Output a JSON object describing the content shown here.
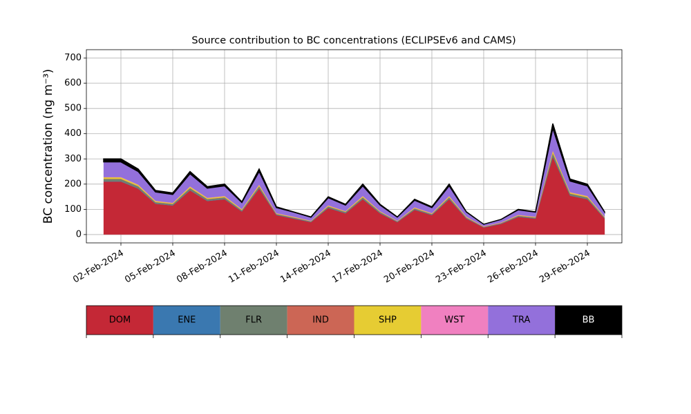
{
  "chart_data": {
    "type": "stacked_area",
    "title": "Source contribution to BC concentrations (ECLIPSEv6 and CAMS)",
    "y_label": "BC concentration (ng m⁻³)",
    "x": [
      "2024-02-01",
      "2024-02-02",
      "2024-02-03",
      "2024-02-04",
      "2024-02-05",
      "2024-02-06",
      "2024-02-07",
      "2024-02-08",
      "2024-02-09",
      "2024-02-10",
      "2024-02-11",
      "2024-02-12",
      "2024-02-13",
      "2024-02-14",
      "2024-02-15",
      "2024-02-16",
      "2024-02-17",
      "2024-02-18",
      "2024-02-19",
      "2024-02-20",
      "2024-02-21",
      "2024-02-22",
      "2024-02-23",
      "2024-02-24",
      "2024-02-25",
      "2024-02-26",
      "2024-02-27",
      "2024-02-28",
      "2024-02-29",
      "2024-03-01"
    ],
    "xlim": [
      "2024-01-31",
      "2024-03-02"
    ],
    "xticks": [
      {
        "value": "2024-02-02",
        "label": "02-Feb-2024"
      },
      {
        "value": "2024-02-05",
        "label": "05-Feb-2024"
      },
      {
        "value": "2024-02-08",
        "label": "08-Feb-2024"
      },
      {
        "value": "2024-02-11",
        "label": "11-Feb-2024"
      },
      {
        "value": "2024-02-14",
        "label": "14-Feb-2024"
      },
      {
        "value": "2024-02-17",
        "label": "17-Feb-2024"
      },
      {
        "value": "2024-02-20",
        "label": "20-Feb-2024"
      },
      {
        "value": "2024-02-23",
        "label": "23-Feb-2024"
      },
      {
        "value": "2024-02-26",
        "label": "26-Feb-2024"
      },
      {
        "value": "2024-02-29",
        "label": "29-Feb-2024"
      }
    ],
    "ylim": [
      -33,
      733
    ],
    "yticks": [
      0,
      100,
      200,
      300,
      400,
      500,
      600,
      700
    ],
    "grid": true,
    "series": [
      {
        "name": "DOM",
        "color": "#c42836",
        "values": [
          210,
          210,
          182,
          122,
          115,
          175,
          133,
          140,
          91,
          182,
          77,
          63,
          49,
          105,
          84,
          140,
          84,
          49,
          98,
          77,
          140,
          63,
          28,
          42,
          70,
          63,
          308,
          154,
          140,
          63
        ]
      },
      {
        "name": "ENE",
        "color": "#3a78b0",
        "values": [
          1,
          1,
          1,
          1,
          1,
          1,
          1,
          1,
          1,
          1,
          1,
          1,
          1,
          1,
          1,
          1,
          1,
          1,
          1,
          1,
          1,
          1,
          1,
          1,
          1,
          1,
          1,
          1,
          1,
          1
        ]
      },
      {
        "name": "FLR",
        "color": "#6f806f",
        "values": [
          9,
          9,
          8,
          5,
          5,
          8,
          6,
          6,
          4,
          8,
          3,
          3,
          2,
          5,
          4,
          6,
          4,
          2,
          4,
          3,
          6,
          3,
          1,
          2,
          3,
          3,
          13,
          7,
          6,
          3
        ]
      },
      {
        "name": "IND",
        "color": "#cc6655",
        "values": [
          1,
          1,
          1,
          1,
          1,
          1,
          1,
          1,
          1,
          1,
          1,
          1,
          1,
          1,
          1,
          1,
          1,
          1,
          1,
          1,
          1,
          1,
          1,
          1,
          1,
          1,
          1,
          1,
          1,
          1
        ]
      },
      {
        "name": "SHP",
        "color": "#e6cc33",
        "values": [
          6,
          6,
          5,
          4,
          3,
          5,
          4,
          4,
          3,
          5,
          2,
          2,
          1,
          3,
          2,
          4,
          2,
          1,
          3,
          2,
          4,
          2,
          1,
          1,
          2,
          2,
          9,
          4,
          4,
          2
        ]
      },
      {
        "name": "WST",
        "color": "#f080c0",
        "values": [
          1,
          1,
          1,
          1,
          1,
          1,
          1,
          1,
          1,
          1,
          1,
          1,
          1,
          1,
          1,
          1,
          1,
          1,
          1,
          1,
          1,
          1,
          1,
          1,
          1,
          1,
          1,
          1,
          1,
          1
        ]
      },
      {
        "name": "TRA",
        "color": "#9370db",
        "values": [
          60,
          60,
          52,
          35,
          33,
          50,
          38,
          40,
          26,
          52,
          22,
          18,
          14,
          30,
          24,
          40,
          24,
          14,
          28,
          22,
          40,
          18,
          8,
          12,
          20,
          18,
          88,
          44,
          40,
          18
        ]
      },
      {
        "name": "BB",
        "color": "#000000",
        "values": [
          12,
          12,
          10,
          6,
          6,
          9,
          6,
          7,
          3,
          10,
          3,
          1,
          1,
          4,
          3,
          7,
          3,
          1,
          4,
          3,
          7,
          1,
          0,
          0,
          2,
          1,
          19,
          8,
          7,
          1
        ]
      }
    ]
  }
}
